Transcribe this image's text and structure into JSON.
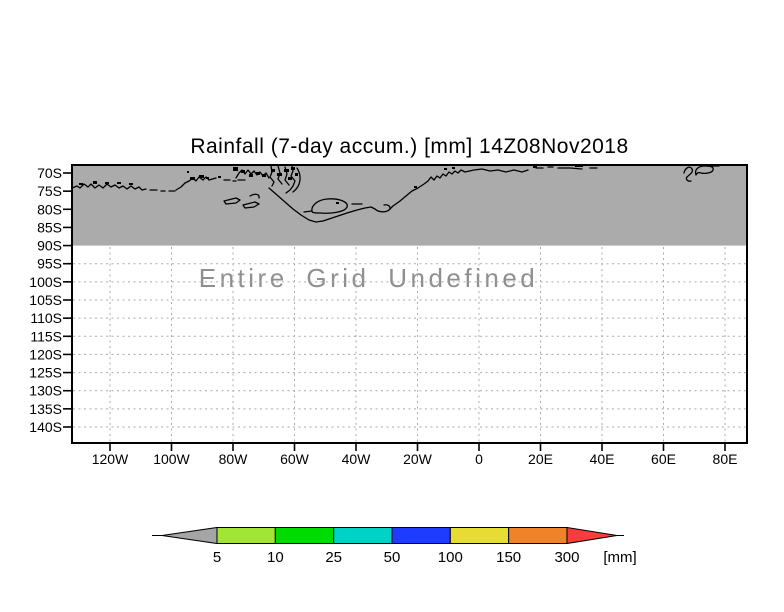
{
  "title": "Rainfall (7-day accum.) [mm] 14Z08Nov2018",
  "undefined_notice": "Entire Grid Undefined",
  "colors": {
    "background": "#ffffff",
    "map_undefined_fill": "#ababab",
    "coastline": "#000000",
    "frame": "#000000",
    "gridline": "#ababab",
    "notice_text": "#8f8f8f"
  },
  "y_axis": {
    "labels": [
      "70S",
      "75S",
      "80S",
      "85S",
      "90S",
      "95S",
      "100S",
      "105S",
      "110S",
      "115S",
      "120S",
      "125S",
      "130S",
      "135S",
      "140S"
    ]
  },
  "x_axis": {
    "labels": [
      "120W",
      "100W",
      "80W",
      "60W",
      "40W",
      "20W",
      "0",
      "20E",
      "40E",
      "60E",
      "80E"
    ]
  },
  "colorbar": {
    "left_arrow_color": "#a5a5a5",
    "cells": [
      "#a0e632",
      "#00dc00",
      "#00d2c8",
      "#1e3cff",
      "#e6dc32",
      "#f08228"
    ],
    "right_arrow_color": "#fa3c3c",
    "tick_labels": [
      "5",
      "10",
      "25",
      "50",
      "100",
      "150",
      "300"
    ],
    "units": "[mm]"
  },
  "chart_data": {
    "type": "heatmap",
    "title": "Rainfall (7-day accum.) [mm] 14Z08Nov2018",
    "variable": "Rainfall (7-day accum.)",
    "units": "mm",
    "valid_time": "14Z08Nov2018",
    "x_tick_labels": [
      "120W",
      "100W",
      "80W",
      "60W",
      "40W",
      "20W",
      "0",
      "20E",
      "40E",
      "60E",
      "80E"
    ],
    "y_tick_labels": [
      "70S",
      "75S",
      "80S",
      "85S",
      "90S",
      "95S",
      "100S",
      "105S",
      "110S",
      "115S",
      "120S",
      "125S",
      "130S",
      "135S",
      "140S"
    ],
    "grid_status": "Entire Grid Undefined",
    "values": null,
    "shaded_band": {
      "from_tick": "70S",
      "to_tick": "90S",
      "fill": "#ababab",
      "content": "Antarctic coastline contours"
    },
    "colorbar_levels": [
      5,
      10,
      25,
      50,
      100,
      150,
      300
    ],
    "colorbar_colors": [
      "#a5a5a5",
      "#a0e632",
      "#00dc00",
      "#00d2c8",
      "#1e3cff",
      "#e6dc32",
      "#f08228",
      "#fa3c3c"
    ],
    "legend_position": "bottom",
    "gridlines": "dotted gray, below 90S only"
  }
}
